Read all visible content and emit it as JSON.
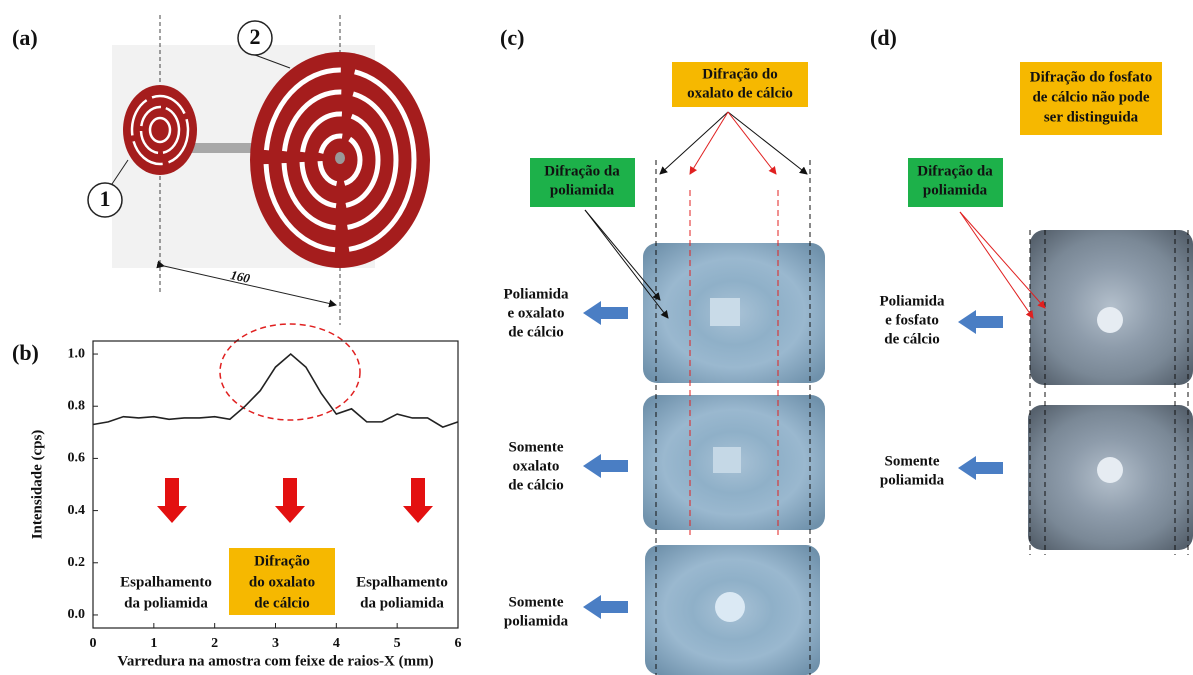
{
  "panels": {
    "a": {
      "label": "(a)",
      "markers": [
        "1",
        "2"
      ],
      "distance": "160"
    },
    "b": {
      "label": "(b)"
    },
    "c": {
      "label": "(c)",
      "oxalate_box": [
        "Difração do",
        "oxalato de cálcio"
      ],
      "polyamide_box": [
        "Difração da",
        "poliamida"
      ],
      "rows": [
        [
          "Poliamida",
          "e oxalato",
          "de cálcio"
        ],
        [
          "Somente",
          "oxalato",
          "de cálcio"
        ],
        [
          "Somente",
          "poliamida"
        ]
      ]
    },
    "d": {
      "label": "(d)",
      "phosphate_box": [
        "Difração do fosfato",
        "de cálcio não pode",
        "ser distinguida"
      ],
      "polyamide_box": [
        "Difração da",
        "poliamida"
      ],
      "rows": [
        [
          "Poliamida",
          "e fosfato",
          "de cálcio"
        ],
        [
          "Somente",
          "poliamida"
        ]
      ]
    }
  },
  "chart_data": {
    "type": "line",
    "xlabel": "Varredura na amostra com feixe de raios-X (mm)",
    "ylabel": "Intensidade (cps)",
    "x": [
      0,
      0.25,
      0.5,
      0.75,
      1,
      1.25,
      1.5,
      1.75,
      2,
      2.25,
      2.5,
      2.75,
      3,
      3.25,
      3.5,
      3.75,
      4,
      4.25,
      4.5,
      4.75,
      5,
      5.25,
      5.5,
      5.75,
      6
    ],
    "values": [
      0.73,
      0.74,
      0.76,
      0.755,
      0.76,
      0.75,
      0.755,
      0.755,
      0.76,
      0.75,
      0.8,
      0.86,
      0.95,
      1.0,
      0.95,
      0.85,
      0.77,
      0.79,
      0.74,
      0.74,
      0.77,
      0.755,
      0.755,
      0.72,
      0.74
    ],
    "color": "#222222",
    "xlim": [
      0,
      6
    ],
    "ylim": [
      -0.05,
      1.05
    ],
    "xticks": [
      0,
      1,
      2,
      3,
      4,
      5,
      6
    ],
    "yticks": [
      {
        "value": 0,
        "label": "0.0"
      },
      {
        "value": 0.2,
        "label": "0.2"
      },
      {
        "value": 0.4,
        "label": "0.4"
      },
      {
        "value": 0.6,
        "label": "0.6"
      },
      {
        "value": 0.8,
        "label": "0.8"
      },
      {
        "value": 1,
        "label": "1.0"
      }
    ],
    "annotations": [
      [
        "Espalhamento",
        "da poliamida"
      ],
      [
        "Difração",
        "do oxalato",
        "de cálcio"
      ],
      [
        "Espalhamento",
        "da  poliamida"
      ]
    ]
  }
}
